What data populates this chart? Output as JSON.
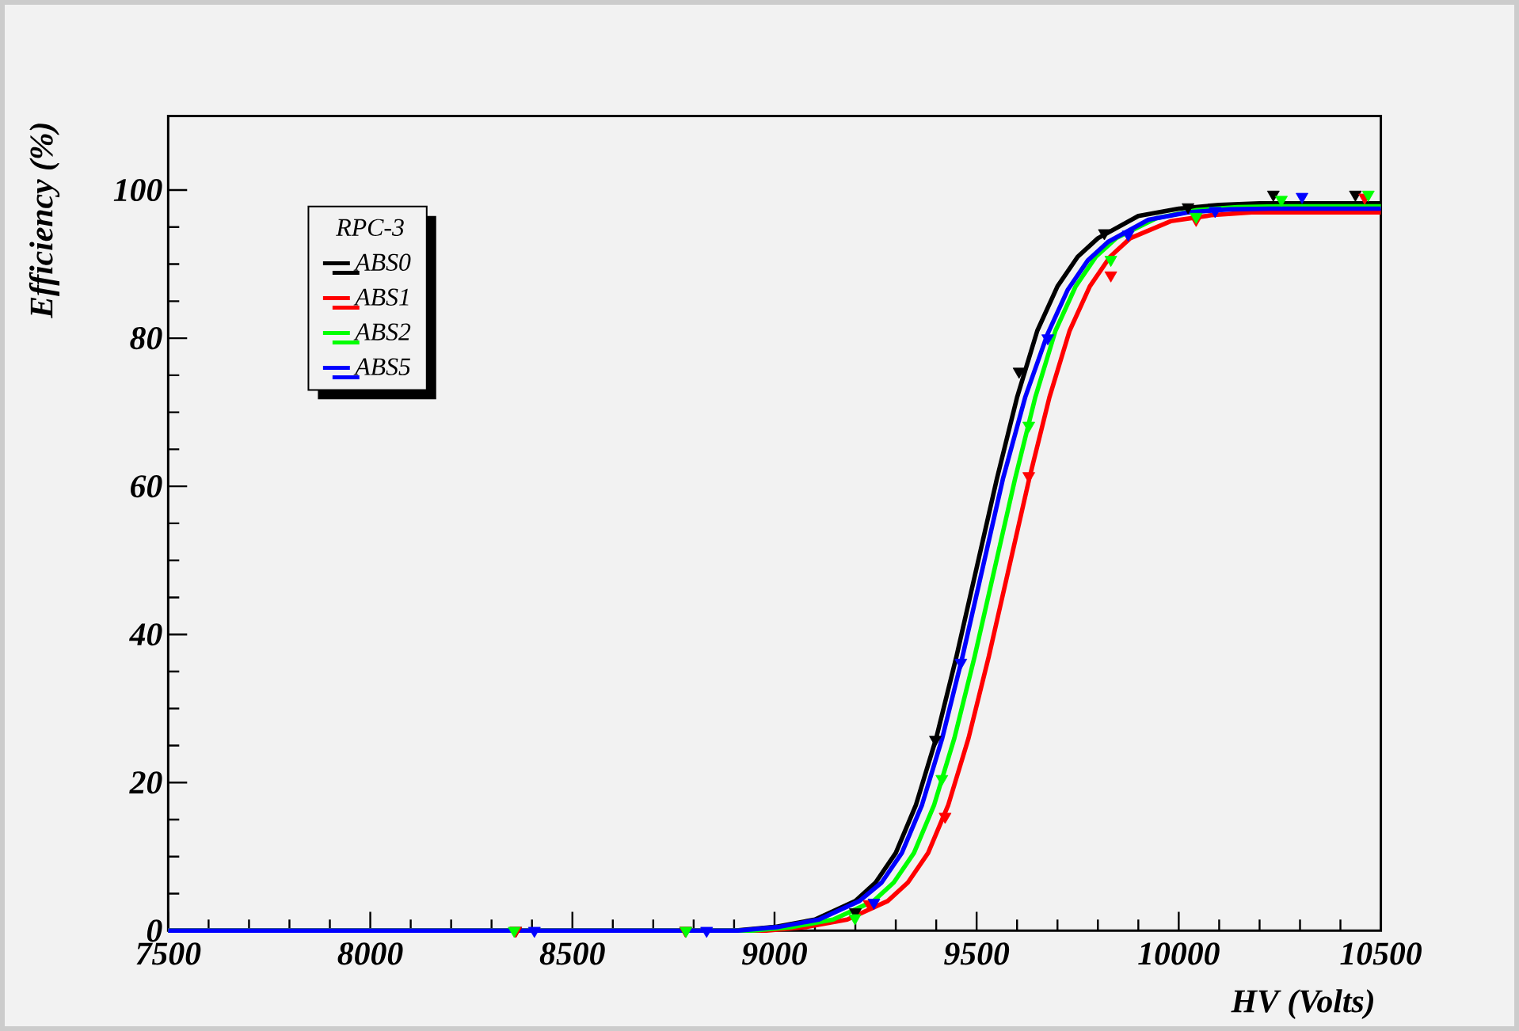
{
  "chart_data": {
    "type": "line",
    "xlabel": "HV (Volts)",
    "ylabel": "Efficiency (%)",
    "legend_title": "RPC-3",
    "legend": "top left",
    "grid": false,
    "xlim": [
      7500,
      10500
    ],
    "ylim": [
      0,
      110
    ],
    "xticks": [
      7500,
      8000,
      8500,
      9000,
      9500,
      10000,
      10500
    ],
    "yticks": [
      0,
      20,
      40,
      60,
      80,
      100
    ],
    "series": [
      {
        "type": "line",
        "marker": "none",
        "color": "#000000",
        "x": [
          7500,
          8900,
          9000,
          9100,
          9200,
          9250,
          9300,
          9350,
          9400,
          9450,
          9500,
          9550,
          9600,
          9650,
          9700,
          9750,
          9800,
          9900,
          10000,
          10100,
          10200,
          10500
        ],
        "values": [
          0,
          0,
          0.5,
          1.5,
          4,
          6.5,
          10.5,
          17,
          26,
          37,
          49,
          61,
          72,
          81,
          87,
          91,
          93.5,
          96.5,
          97.5,
          98,
          98.2,
          98.2
        ]
      },
      {
        "type": "line",
        "marker": "none",
        "color": "#ff0000",
        "x": [
          7500,
          8980,
          9080,
          9180,
          9280,
          9330,
          9380,
          9430,
          9480,
          9530,
          9580,
          9630,
          9680,
          9730,
          9780,
          9830,
          9880,
          9980,
          10080,
          10180,
          10280,
          10500
        ],
        "values": [
          0,
          0,
          0.5,
          1.5,
          4,
          6.5,
          10.5,
          17,
          26,
          37,
          49,
          61,
          72,
          81,
          87,
          91,
          93.5,
          95.8,
          96.6,
          97,
          97,
          97
        ]
      },
      {
        "type": "line",
        "marker": "none",
        "color": "#00ff00",
        "x": [
          7500,
          8945,
          9045,
          9145,
          9245,
          9295,
          9345,
          9395,
          9445,
          9495,
          9545,
          9595,
          9645,
          9695,
          9745,
          9795,
          9845,
          9945,
          10045,
          10145,
          10245,
          10500
        ],
        "values": [
          0,
          0,
          0.5,
          1.5,
          4,
          6.5,
          10.5,
          17,
          26,
          37,
          49,
          61,
          72,
          81,
          87,
          91,
          93.5,
          96.2,
          97.3,
          97.7,
          97.8,
          97.8
        ]
      },
      {
        "type": "line",
        "marker": "none",
        "color": "#0000ff",
        "x": [
          7500,
          8910,
          9010,
          9110,
          9210,
          9265,
          9315,
          9365,
          9415,
          9465,
          9515,
          9565,
          9620,
          9675,
          9725,
          9775,
          9825,
          9925,
          10025,
          10125,
          10225,
          10500
        ],
        "values": [
          0,
          0,
          0.5,
          1.5,
          4,
          6.5,
          10.5,
          17,
          26,
          37,
          49,
          61,
          72,
          80.5,
          86.5,
          90.5,
          93,
          96,
          97,
          97.4,
          97.5,
          97.5
        ]
      },
      {
        "type": "scatter",
        "marker": "triangle",
        "name": "ABS0",
        "color": "#000000",
        "x": [
          8360,
          8780,
          9200,
          9398,
          9605,
          9816,
          10023,
          10234,
          10437
        ],
        "values": [
          0,
          0,
          2.5,
          25.8,
          75.5,
          94.2,
          97.7,
          99.4,
          99.4
        ]
      },
      {
        "type": "scatter",
        "marker": "triangle",
        "name": "ABS1",
        "color": "#ff0000",
        "x": [
          8360,
          8780,
          9234,
          9422,
          9629,
          9832,
          10043,
          10250,
          10460
        ],
        "values": [
          0,
          0,
          3.6,
          15.4,
          61.4,
          88.5,
          96,
          null,
          99
        ]
      },
      {
        "type": "scatter",
        "marker": "triangle",
        "name": "ABS2",
        "color": "#00ff00",
        "x": [
          8356,
          8781,
          9199,
          9414,
          9629,
          9832,
          10043,
          10254,
          10469
        ],
        "values": [
          0,
          0,
          1.7,
          20.5,
          68.2,
          90.6,
          96.4,
          98.7,
          99.4
        ]
      },
      {
        "type": "scatter",
        "marker": "triangle",
        "name": "ABS5",
        "color": "#0000ff",
        "x": [
          8406,
          8832,
          9246,
          9461,
          9676,
          9875,
          10090,
          10305
        ],
        "values": [
          0,
          0,
          3.8,
          36.2,
          80,
          94,
          97.2,
          99.1
        ]
      }
    ]
  }
}
